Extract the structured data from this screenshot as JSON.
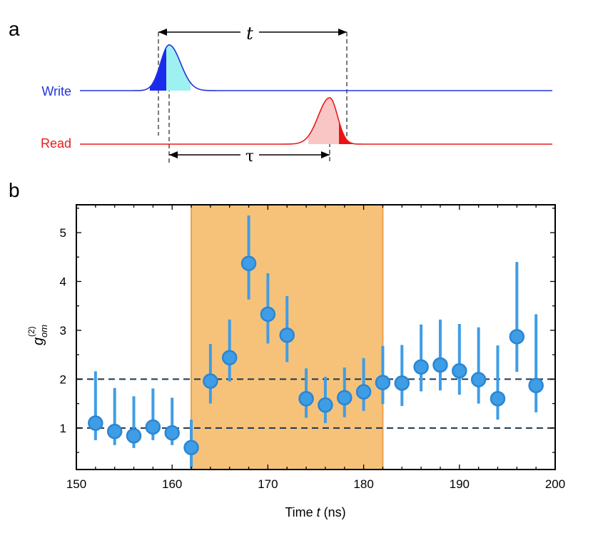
{
  "panel_a": {
    "label": "a",
    "write_label": "Write",
    "read_label": "Read",
    "t_symbol": "t",
    "tau_symbol": "τ",
    "colors": {
      "write": "#2233dd",
      "write_dark": "#1a2bee",
      "write_light": "#9ff0f0",
      "read": "#e81c1c",
      "read_dark": "#ee1111",
      "read_light": "#f9c5c5"
    }
  },
  "panel_b": {
    "label": "b",
    "colors": {
      "marker": "#3f9de6",
      "marker_edge": "#2a86d4",
      "shade": "#f6c27a",
      "shade_edge": "#f0a04a",
      "ref_line": "#1f3550"
    }
  },
  "chart_data": {
    "type": "scatter",
    "title": "",
    "xlabel": "Time t (ns)",
    "xlabel_parts": {
      "prefix": "Time ",
      "var": "t",
      "suffix": " (ns)"
    },
    "ylabel": "g_om^(2)",
    "ylabel_parts": {
      "main": "g",
      "sub": "om",
      "sup": "(2)"
    },
    "xlim": [
      150,
      200
    ],
    "ylim": [
      0.15,
      5.57
    ],
    "xticks": [
      150,
      160,
      170,
      180,
      190,
      200
    ],
    "yticks": [
      1,
      2,
      3,
      4,
      5
    ],
    "reference_lines": [
      1,
      2
    ],
    "shaded_region": [
      162,
      182
    ],
    "grid": false,
    "series": [
      {
        "name": "g_om^(2)",
        "x": [
          152,
          154,
          156,
          158,
          160,
          162,
          164,
          166,
          168,
          170,
          172,
          174,
          176,
          178,
          180,
          182,
          184,
          186,
          188,
          190,
          192,
          194,
          196,
          198
        ],
        "y": [
          1.1,
          0.93,
          0.84,
          1.02,
          0.9,
          0.6,
          1.96,
          2.44,
          4.37,
          3.33,
          2.9,
          1.6,
          1.47,
          1.62,
          1.74,
          1.93,
          1.92,
          2.25,
          2.29,
          2.17,
          1.99,
          1.6,
          2.87,
          1.87
        ],
        "y_low": [
          0.75,
          0.65,
          0.59,
          0.75,
          0.65,
          0.18,
          1.5,
          1.95,
          3.63,
          2.73,
          2.35,
          1.21,
          1.1,
          1.22,
          1.35,
          1.49,
          1.45,
          1.75,
          1.77,
          1.68,
          1.5,
          1.17,
          2.15,
          1.32
        ],
        "y_high": [
          2.16,
          1.82,
          1.65,
          1.81,
          1.62,
          1.17,
          2.72,
          3.22,
          5.35,
          4.17,
          3.7,
          2.22,
          2.05,
          2.24,
          2.43,
          2.68,
          2.7,
          3.12,
          3.22,
          3.13,
          3.06,
          2.69,
          4.4,
          3.33
        ]
      }
    ]
  }
}
